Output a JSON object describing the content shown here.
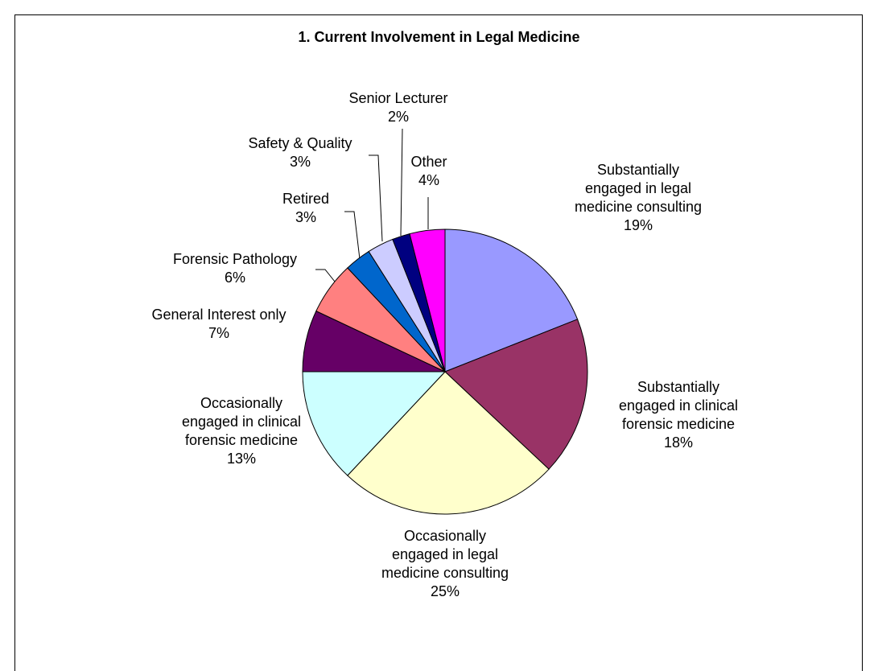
{
  "chart_data": {
    "type": "pie",
    "title": "1. Current Involvement in Legal Medicine",
    "categories": [
      "Substantially engaged in legal medicine consulting",
      "Substantially engaged in clinical forensic medicine",
      "Occasionally engaged in legal medicine consulting",
      "Occasionally engaged in clinical forensic medicine",
      "General Interest only",
      "Forensic Pathology",
      "Retired",
      "Safety & Quality",
      "Senior Lecturer",
      "Other"
    ],
    "values": [
      19,
      18,
      25,
      13,
      7,
      6,
      3,
      3,
      2,
      4
    ],
    "value_labels": [
      "19%",
      "18%",
      "25%",
      "13%",
      "7%",
      "6%",
      "3%",
      "3%",
      "2%",
      "4%"
    ],
    "colors": [
      "#9999ff",
      "#993366",
      "#ffffcc",
      "#ccffff",
      "#660066",
      "#ff8080",
      "#0066cc",
      "#ccccff",
      "#000080",
      "#ff00ff"
    ]
  }
}
